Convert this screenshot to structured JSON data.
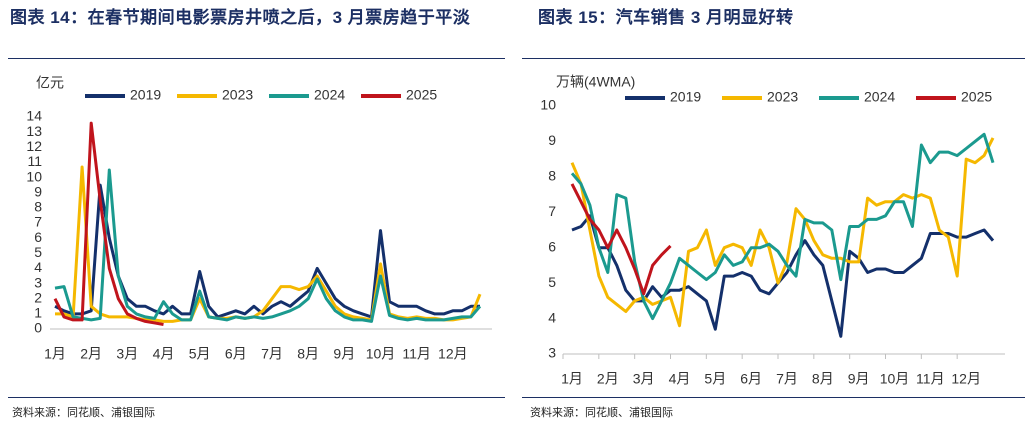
{
  "chart_data": [
    {
      "type": "line",
      "title": "图表 14：在春节期间电影票房井喷之后，3 月票房趋于平淡",
      "y_label": "亿元",
      "source": "资料来源：同花顺、浦银国际",
      "x": [
        1,
        1.25,
        1.5,
        1.75,
        2,
        2.25,
        2.5,
        2.75,
        3,
        3.25,
        3.5,
        3.75,
        4,
        4.25,
        4.5,
        4.75,
        5,
        5.25,
        5.5,
        5.75,
        6,
        6.25,
        6.5,
        6.75,
        7,
        7.25,
        7.5,
        7.75,
        8,
        8.25,
        8.5,
        8.75,
        9,
        9.25,
        9.5,
        9.75,
        10,
        10.25,
        10.5,
        10.75,
        11,
        11.25,
        11.5,
        11.75,
        12,
        12.25,
        12.5,
        12.75
      ],
      "xlim": [
        1,
        13
      ],
      "xticks": [
        {
          "value": 1,
          "label": "1月"
        },
        {
          "value": 2,
          "label": "2月"
        },
        {
          "value": 3,
          "label": "3月"
        },
        {
          "value": 4,
          "label": "4月"
        },
        {
          "value": 5,
          "label": "5月"
        },
        {
          "value": 6,
          "label": "6月"
        },
        {
          "value": 7,
          "label": "7月"
        },
        {
          "value": 8,
          "label": "8月"
        },
        {
          "value": 9,
          "label": "9月"
        },
        {
          "value": 10,
          "label": "10月"
        },
        {
          "value": 11,
          "label": "11月"
        },
        {
          "value": 12,
          "label": "12月"
        }
      ],
      "ylim": [
        0,
        14
      ],
      "yticks": [
        0,
        1,
        2,
        3,
        4,
        5,
        6,
        7,
        8,
        9,
        10,
        11,
        12,
        13,
        14
      ],
      "grid": false,
      "series": [
        {
          "name": "2019",
          "color": "#14306b",
          "values": [
            1.5,
            1.2,
            1.0,
            1.0,
            1.2,
            9.5,
            6.0,
            3.5,
            2.0,
            1.5,
            1.5,
            1.2,
            1.0,
            1.5,
            1.0,
            1.0,
            3.8,
            1.5,
            0.8,
            1.0,
            1.2,
            1.0,
            1.5,
            1.0,
            1.5,
            1.8,
            1.5,
            2.0,
            2.5,
            4.0,
            3.0,
            2.0,
            1.5,
            1.2,
            1.0,
            0.8,
            6.5,
            1.8,
            1.5,
            1.5,
            1.5,
            1.2,
            1.0,
            1.0,
            1.2,
            1.2,
            1.5,
            1.5
          ]
        },
        {
          "name": "2023",
          "color": "#f5b800",
          "values": [
            1.0,
            1.0,
            0.8,
            10.7,
            1.5,
            1.0,
            0.8,
            0.8,
            0.8,
            0.7,
            0.6,
            0.6,
            0.5,
            0.5,
            0.6,
            0.6,
            2.0,
            0.8,
            0.7,
            0.7,
            0.8,
            0.7,
            0.8,
            1.2,
            2.0,
            2.8,
            2.8,
            2.6,
            2.8,
            3.5,
            2.5,
            1.5,
            1.0,
            0.8,
            0.7,
            0.6,
            4.3,
            1.0,
            0.8,
            0.7,
            0.8,
            0.7,
            0.7,
            0.6,
            0.6,
            0.7,
            0.8,
            2.3
          ]
        },
        {
          "name": "2024",
          "color": "#1b9a8f",
          "values": [
            2.7,
            2.8,
            0.8,
            0.7,
            0.6,
            0.7,
            10.5,
            3.5,
            1.5,
            1.0,
            0.8,
            0.7,
            1.8,
            1.0,
            0.6,
            0.6,
            2.5,
            0.8,
            0.7,
            0.6,
            0.8,
            0.7,
            0.8,
            0.7,
            0.8,
            1.0,
            1.2,
            1.5,
            2.0,
            3.3,
            2.0,
            1.2,
            0.8,
            0.6,
            0.6,
            0.5,
            3.5,
            0.9,
            0.7,
            0.6,
            0.7,
            0.6,
            0.6,
            0.6,
            0.7,
            0.8,
            0.8,
            1.5
          ]
        },
        {
          "name": "2025",
          "color": "#c0141c",
          "values": [
            2.0,
            0.8,
            0.6,
            0.6,
            13.6,
            8.5,
            4.0,
            2.0,
            1.0,
            0.7,
            0.5,
            0.4,
            0.3,
            null,
            null,
            null,
            null,
            null,
            null,
            null,
            null,
            null,
            null,
            null,
            null,
            null,
            null,
            null,
            null,
            null,
            null,
            null,
            null,
            null,
            null,
            null,
            null,
            null,
            null,
            null,
            null,
            null,
            null,
            null,
            null,
            null,
            null,
            null
          ]
        }
      ]
    },
    {
      "type": "line",
      "title": "图表 15：汽车销售 3 月明显好转",
      "y_label": "万辆(4WMA)",
      "source": "资料来源：同花顺、浦银国际",
      "x": [
        1,
        1.25,
        1.5,
        1.75,
        2,
        2.25,
        2.5,
        2.75,
        3,
        3.25,
        3.5,
        3.75,
        4,
        4.25,
        4.5,
        4.75,
        5,
        5.25,
        5.5,
        5.75,
        6,
        6.25,
        6.5,
        6.75,
        7,
        7.25,
        7.5,
        7.75,
        8,
        8.25,
        8.5,
        8.75,
        9,
        9.25,
        9.5,
        9.75,
        10,
        10.25,
        10.5,
        10.75,
        11,
        11.25,
        11.5,
        11.75,
        12,
        12.25,
        12.5,
        12.75
      ],
      "xlim": [
        1,
        13
      ],
      "xticks": [
        {
          "value": 1,
          "label": "1月"
        },
        {
          "value": 2,
          "label": "2月"
        },
        {
          "value": 3,
          "label": "3月"
        },
        {
          "value": 4,
          "label": "4月"
        },
        {
          "value": 5,
          "label": "5月"
        },
        {
          "value": 6,
          "label": "6月"
        },
        {
          "value": 7,
          "label": "7月"
        },
        {
          "value": 8,
          "label": "8月"
        },
        {
          "value": 9,
          "label": "9月"
        },
        {
          "value": 10,
          "label": "10月"
        },
        {
          "value": 11,
          "label": "11月"
        },
        {
          "value": 12,
          "label": "12月"
        }
      ],
      "ylim": [
        3,
        10
      ],
      "yticks": [
        3,
        4,
        5,
        6,
        7,
        8,
        9,
        10
      ],
      "grid": false,
      "series": [
        {
          "name": "2019",
          "color": "#14306b",
          "values": [
            6.5,
            6.6,
            6.9,
            6.0,
            6.0,
            5.5,
            4.8,
            4.5,
            4.5,
            4.9,
            4.6,
            4.8,
            4.8,
            4.9,
            4.7,
            4.5,
            3.7,
            5.2,
            5.2,
            5.3,
            5.2,
            4.8,
            4.7,
            5.0,
            5.3,
            5.8,
            6.2,
            5.8,
            5.5,
            4.5,
            3.5,
            5.9,
            5.7,
            5.3,
            5.4,
            5.4,
            5.3,
            5.3,
            5.5,
            5.7,
            6.4,
            6.4,
            6.4,
            6.3,
            6.3,
            6.4,
            6.5,
            6.2
          ]
        },
        {
          "name": "2023",
          "color": "#f5b800",
          "values": [
            8.4,
            7.8,
            6.5,
            5.2,
            4.6,
            4.4,
            4.2,
            4.5,
            4.6,
            4.4,
            4.5,
            4.6,
            3.8,
            5.9,
            6.0,
            6.5,
            5.5,
            6.0,
            6.1,
            6.0,
            5.5,
            6.5,
            6.0,
            5.0,
            5.6,
            7.1,
            6.8,
            6.2,
            5.8,
            5.7,
            5.7,
            5.6,
            5.6,
            7.4,
            7.2,
            7.3,
            7.3,
            7.5,
            7.4,
            7.5,
            7.4,
            6.5,
            6.3,
            5.2,
            8.5,
            8.4,
            8.6,
            9.1
          ]
        },
        {
          "name": "2024",
          "color": "#1b9a8f",
          "values": [
            8.1,
            7.8,
            7.2,
            6.0,
            5.3,
            7.5,
            7.4,
            5.6,
            4.5,
            4.0,
            4.5,
            5.0,
            5.7,
            5.5,
            5.3,
            5.1,
            5.3,
            5.8,
            5.5,
            5.6,
            6.0,
            6.0,
            6.1,
            5.9,
            5.5,
            5.2,
            6.8,
            6.7,
            6.7,
            6.5,
            5.1,
            6.6,
            6.6,
            6.8,
            6.8,
            6.9,
            7.3,
            7.3,
            6.6,
            8.9,
            8.4,
            8.7,
            8.7,
            8.6,
            8.8,
            9.0,
            9.2,
            8.4
          ]
        },
        {
          "name": "2025",
          "color": "#c0141c",
          "values": [
            7.8,
            7.3,
            6.8,
            6.5,
            6.0,
            6.5,
            6.0,
            5.4,
            4.7,
            5.5,
            5.8,
            6.05,
            null,
            null,
            null,
            null,
            null,
            null,
            null,
            null,
            null,
            null,
            null,
            null,
            null,
            null,
            null,
            null,
            null,
            null,
            null,
            null,
            null,
            null,
            null,
            null,
            null,
            null,
            null,
            null,
            null,
            null,
            null,
            null,
            null,
            null,
            null,
            null
          ]
        }
      ]
    }
  ]
}
